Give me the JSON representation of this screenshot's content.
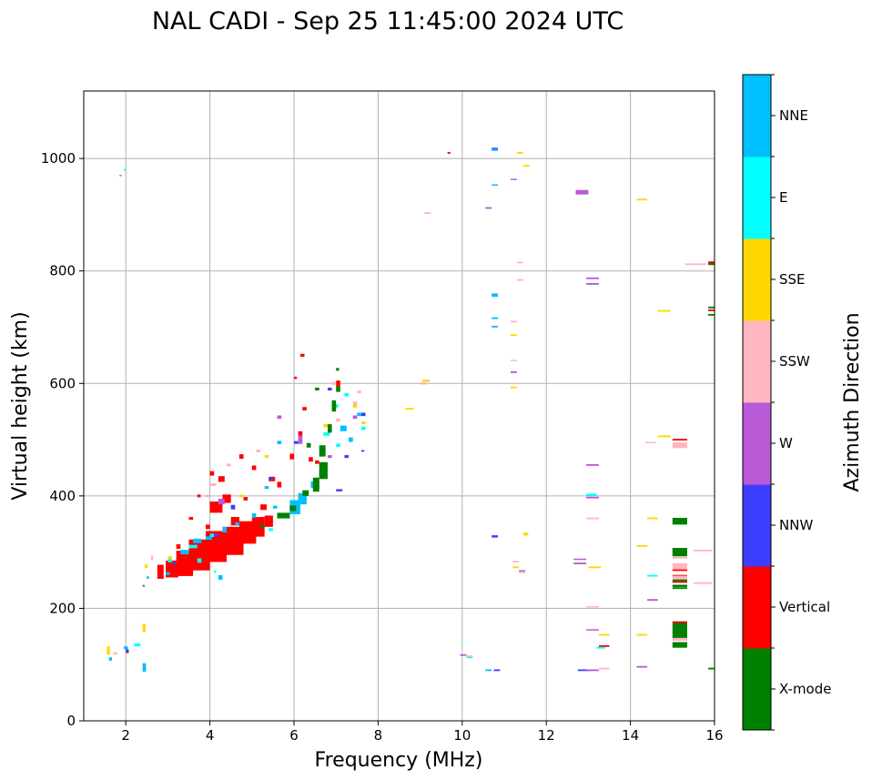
{
  "chart_data": {
    "type": "scatter",
    "title": "NAL CADI - Sep 25 11:45:00 2024 UTC",
    "xlabel": "Frequency (MHz)",
    "ylabel": "Virtual height (km)",
    "xlim": [
      1,
      16
    ],
    "ylim": [
      0,
      1120
    ],
    "xticks": [
      2,
      4,
      6,
      8,
      10,
      12,
      14,
      16
    ],
    "yticks": [
      0,
      200,
      400,
      600,
      800,
      1000
    ],
    "grid": true,
    "colorbar": {
      "label": "Azimuth Direction",
      "categories": [
        "X-mode",
        "Vertical",
        "NNW",
        "W",
        "SSW",
        "SSE",
        "E",
        "NNE"
      ],
      "colors": [
        "#008000",
        "#ff0000",
        "#3d3dff",
        "#b95ad6",
        "#ffb6c1",
        "#ffd700",
        "#00ffff",
        "#00bfff"
      ]
    },
    "echo_fields": [
      "freq_mhz",
      "height_km",
      "direction_index",
      "freq_width_mhz",
      "height_extent_km"
    ],
    "echoes": [
      [
        2.75,
        265,
        1,
        0.15,
        25
      ],
      [
        2.95,
        270,
        1,
        0.3,
        30
      ],
      [
        3.2,
        280,
        1,
        0.4,
        45
      ],
      [
        3.5,
        295,
        1,
        0.5,
        55
      ],
      [
        3.9,
        310,
        1,
        0.5,
        55
      ],
      [
        4.3,
        320,
        1,
        0.5,
        50
      ],
      [
        4.7,
        335,
        1,
        0.4,
        40
      ],
      [
        5.0,
        345,
        1,
        0.3,
        35
      ],
      [
        5.3,
        355,
        1,
        0.2,
        20
      ],
      [
        4.0,
        380,
        1,
        0.3,
        20
      ],
      [
        4.3,
        395,
        1,
        0.2,
        15
      ],
      [
        4.2,
        430,
        1,
        0.15,
        10
      ],
      [
        4.0,
        440,
        1,
        0.1,
        8
      ],
      [
        4.7,
        470,
        1,
        0.1,
        8
      ],
      [
        5.0,
        450,
        1,
        0.1,
        8
      ],
      [
        5.4,
        430,
        1,
        0.15,
        8
      ],
      [
        5.6,
        420,
        1,
        0.1,
        10
      ],
      [
        5.9,
        470,
        1,
        0.1,
        10
      ],
      [
        6.1,
        510,
        1,
        0.1,
        10
      ],
      [
        6.2,
        555,
        1,
        0.1,
        6
      ],
      [
        6.15,
        650,
        1,
        0.1,
        5
      ],
      [
        6.0,
        610,
        1,
        0.07,
        4
      ],
      [
        6.35,
        465,
        1,
        0.1,
        8
      ],
      [
        3.7,
        400,
        1,
        0.08,
        5
      ],
      [
        3.5,
        360,
        1,
        0.1,
        5
      ],
      [
        6.5,
        420,
        1,
        0.1,
        15
      ],
      [
        7.0,
        600,
        1,
        0.1,
        10
      ],
      [
        6.5,
        460,
        1,
        0.1,
        6
      ],
      [
        5.2,
        380,
        1,
        0.15,
        10
      ],
      [
        4.5,
        355,
        1,
        0.2,
        15
      ],
      [
        3.0,
        265,
        1,
        0.1,
        6
      ],
      [
        3.2,
        310,
        1,
        0.1,
        8
      ],
      [
        4.8,
        395,
        1,
        0.1,
        6
      ],
      [
        3.9,
        345,
        1,
        0.1,
        8
      ],
      [
        9.65,
        1010,
        1,
        0.07,
        3
      ],
      [
        15.85,
        815,
        1,
        0.35,
        4
      ],
      [
        15.85,
        730,
        1,
        0.35,
        3
      ],
      [
        15.0,
        500,
        1,
        0.35,
        3
      ],
      [
        15.0,
        306,
        1,
        0.35,
        3
      ],
      [
        15.0,
        268,
        1,
        0.35,
        3
      ],
      [
        15.0,
        258,
        1,
        0.35,
        3
      ],
      [
        15.0,
        247,
        1,
        0.35,
        3
      ],
      [
        15.0,
        175,
        1,
        0.35,
        4
      ],
      [
        13.25,
        133,
        1,
        0.25,
        3
      ],
      [
        2.0,
        123,
        1,
        0.07,
        5
      ],
      [
        3.3,
        300,
        7,
        0.2,
        8
      ],
      [
        3.6,
        320,
        7,
        0.2,
        8
      ],
      [
        3.9,
        325,
        7,
        0.15,
        6
      ],
      [
        4.3,
        340,
        7,
        0.1,
        10
      ],
      [
        4.6,
        350,
        7,
        0.1,
        6
      ],
      [
        5.0,
        365,
        7,
        0.1,
        8
      ],
      [
        5.9,
        380,
        7,
        0.25,
        25
      ],
      [
        6.1,
        395,
        7,
        0.2,
        20
      ],
      [
        6.4,
        420,
        7,
        0.2,
        12
      ],
      [
        6.6,
        440,
        7,
        0.15,
        10
      ],
      [
        2.95,
        262,
        7,
        0.1,
        5
      ],
      [
        2.5,
        255,
        7,
        0.05,
        5
      ],
      [
        4.2,
        255,
        7,
        0.1,
        8
      ],
      [
        5.5,
        380,
        7,
        0.1,
        5
      ],
      [
        5.6,
        495,
        7,
        0.1,
        6
      ],
      [
        7.1,
        520,
        7,
        0.15,
        10
      ],
      [
        7.3,
        500,
        7,
        0.1,
        8
      ],
      [
        7.5,
        545,
        7,
        0.1,
        6
      ],
      [
        5.3,
        415,
        7,
        0.1,
        5
      ],
      [
        2.4,
        95,
        7,
        0.08,
        15
      ],
      [
        1.6,
        110,
        7,
        0.07,
        6
      ],
      [
        1.95,
        130,
        7,
        0.1,
        5
      ],
      [
        10.7,
        757,
        7,
        0.15,
        6
      ],
      [
        10.7,
        716,
        7,
        0.15,
        3
      ],
      [
        10.7,
        701,
        7,
        0.15,
        3
      ],
      [
        10.7,
        953,
        7,
        0.15,
        2
      ],
      [
        10.7,
        1015,
        7,
        0.15,
        3
      ],
      [
        10.55,
        90,
        7,
        0.15,
        3
      ],
      [
        3.5,
        310,
        6,
        0.2,
        6
      ],
      [
        3.0,
        285,
        6,
        0.1,
        6
      ],
      [
        3.7,
        285,
        6,
        0.1,
        8
      ],
      [
        4.0,
        330,
        6,
        0.1,
        6
      ],
      [
        4.1,
        265,
        6,
        0.05,
        4
      ],
      [
        6.9,
        560,
        6,
        0.15,
        6
      ],
      [
        7.2,
        580,
        6,
        0.1,
        6
      ],
      [
        7.6,
        520,
        6,
        0.1,
        6
      ],
      [
        6.7,
        510,
        6,
        0.15,
        6
      ],
      [
        7.0,
        490,
        6,
        0.1,
        6
      ],
      [
        2.2,
        135,
        6,
        0.15,
        5
      ],
      [
        1.95,
        980,
        6,
        0.05,
        3
      ],
      [
        12.95,
        402,
        6,
        0.25,
        4
      ],
      [
        14.4,
        258,
        6,
        0.25,
        3
      ],
      [
        13.2,
        130,
        6,
        0.2,
        3
      ],
      [
        10.1,
        113,
        6,
        0.15,
        3
      ],
      [
        5.4,
        340,
        6,
        0.1,
        5
      ],
      [
        5.6,
        365,
        0,
        0.3,
        10
      ],
      [
        5.9,
        378,
        0,
        0.15,
        10
      ],
      [
        6.2,
        405,
        0,
        0.15,
        10
      ],
      [
        6.45,
        420,
        0,
        0.15,
        25
      ],
      [
        6.6,
        445,
        0,
        0.2,
        30
      ],
      [
        6.6,
        480,
        0,
        0.15,
        20
      ],
      [
        6.8,
        520,
        0,
        0.1,
        15
      ],
      [
        6.9,
        560,
        0,
        0.1,
        20
      ],
      [
        7.0,
        590,
        0,
        0.1,
        10
      ],
      [
        6.3,
        490,
        0,
        0.1,
        8
      ],
      [
        6.5,
        590,
        0,
        0.1,
        5
      ],
      [
        7.0,
        625,
        0,
        0.07,
        5
      ],
      [
        5.2,
        345,
        0,
        0.1,
        5
      ],
      [
        15.0,
        355,
        0,
        0.35,
        12
      ],
      [
        15.0,
        300,
        0,
        0.35,
        15
      ],
      [
        15.0,
        240,
        0,
        0.35,
        4
      ],
      [
        15.0,
        236,
        0,
        0.35,
        3
      ],
      [
        15.0,
        160,
        0,
        0.35,
        28
      ],
      [
        15.0,
        135,
        0,
        0.35,
        10
      ],
      [
        15.85,
        812,
        0,
        0.35,
        3
      ],
      [
        15.85,
        735,
        0,
        0.35,
        3
      ],
      [
        15.85,
        722,
        0,
        0.35,
        3
      ],
      [
        15.85,
        93,
        0,
        0.35,
        3
      ],
      [
        15.0,
        250,
        0,
        0.35,
        3
      ],
      [
        4.1,
        330,
        2,
        0.1,
        5
      ],
      [
        5.4,
        430,
        2,
        0.1,
        5
      ],
      [
        6.0,
        495,
        2,
        0.1,
        5
      ],
      [
        7.2,
        470,
        2,
        0.1,
        5
      ],
      [
        7.0,
        410,
        2,
        0.15,
        4
      ],
      [
        6.8,
        590,
        2,
        0.1,
        5
      ],
      [
        7.6,
        545,
        2,
        0.1,
        6
      ],
      [
        7.6,
        480,
        2,
        0.07,
        3
      ],
      [
        4.5,
        380,
        2,
        0.1,
        8
      ],
      [
        2.0,
        125,
        2,
        0.07,
        5
      ],
      [
        10.7,
        328,
        2,
        0.15,
        4
      ],
      [
        10.75,
        90,
        2,
        0.15,
        3
      ],
      [
        12.75,
        90,
        2,
        0.3,
        3
      ],
      [
        10.7,
        1018,
        2,
        0.15,
        2
      ],
      [
        3.1,
        280,
        2,
        0.1,
        4
      ],
      [
        4.2,
        390,
        3,
        0.15,
        10
      ],
      [
        6.1,
        500,
        3,
        0.1,
        15
      ],
      [
        5.6,
        540,
        3,
        0.1,
        6
      ],
      [
        7.4,
        540,
        3,
        0.1,
        6
      ],
      [
        6.8,
        470,
        3,
        0.1,
        5
      ],
      [
        1.85,
        970,
        3,
        0.05,
        2
      ],
      [
        2.4,
        240,
        3,
        0.05,
        4
      ],
      [
        11.15,
        963,
        3,
        0.15,
        2
      ],
      [
        10.55,
        912,
        3,
        0.15,
        3
      ],
      [
        12.7,
        940,
        3,
        0.3,
        8
      ],
      [
        12.95,
        787,
        3,
        0.3,
        3
      ],
      [
        12.95,
        777,
        3,
        0.3,
        3
      ],
      [
        11.15,
        620,
        3,
        0.15,
        3
      ],
      [
        12.95,
        455,
        3,
        0.3,
        3
      ],
      [
        12.95,
        397,
        3,
        0.3,
        3
      ],
      [
        12.65,
        288,
        3,
        0.3,
        1
      ],
      [
        12.65,
        280,
        3,
        0.3,
        3
      ],
      [
        11.35,
        267,
        3,
        0.15,
        2
      ],
      [
        14.4,
        215,
        3,
        0.25,
        3
      ],
      [
        12.95,
        162,
        3,
        0.3,
        2
      ],
      [
        14.15,
        96,
        3,
        0.25,
        3
      ],
      [
        12.95,
        90,
        3,
        0.3,
        3
      ],
      [
        9.95,
        117,
        3,
        0.15,
        3
      ],
      [
        4.0,
        420,
        4,
        0.15,
        5
      ],
      [
        3.9,
        400,
        4,
        0.1,
        5
      ],
      [
        4.4,
        455,
        4,
        0.1,
        5
      ],
      [
        5.1,
        480,
        4,
        0.1,
        5
      ],
      [
        6.9,
        600,
        4,
        0.1,
        5
      ],
      [
        7.4,
        565,
        4,
        0.1,
        6
      ],
      [
        7.5,
        585,
        4,
        0.1,
        5
      ],
      [
        7.0,
        535,
        4,
        0.1,
        6
      ],
      [
        2.6,
        290,
        4,
        0.05,
        8
      ],
      [
        1.7,
        120,
        4,
        0.1,
        4
      ],
      [
        11.3,
        815,
        4,
        0.15,
        3
      ],
      [
        11.3,
        784,
        4,
        0.15,
        3
      ],
      [
        11.15,
        710,
        4,
        0.15,
        3
      ],
      [
        11.15,
        641,
        4,
        0.15,
        2
      ],
      [
        9.1,
        903,
        4,
        0.15,
        3
      ],
      [
        9.0,
        600,
        4,
        0.15,
        4
      ],
      [
        15.3,
        812,
        4,
        0.5,
        3
      ],
      [
        14.35,
        495,
        4,
        0.25,
        2
      ],
      [
        15.0,
        490,
        4,
        0.35,
        10
      ],
      [
        12.95,
        360,
        4,
        0.3,
        3
      ],
      [
        15.5,
        303,
        4,
        0.45,
        3
      ],
      [
        15.0,
        290,
        4,
        0.35,
        3
      ],
      [
        11.2,
        283,
        4,
        0.15,
        3
      ],
      [
        11.35,
        264,
        4,
        0.15,
        3
      ],
      [
        15.0,
        275,
        4,
        0.35,
        10
      ],
      [
        15.0,
        255,
        4,
        0.35,
        6
      ],
      [
        15.5,
        245,
        4,
        0.45,
        3
      ],
      [
        12.95,
        203,
        4,
        0.3,
        2
      ],
      [
        15.0,
        145,
        4,
        0.35,
        5
      ],
      [
        13.25,
        93,
        4,
        0.25,
        3
      ],
      [
        10.1,
        115,
        4,
        0.15,
        3
      ],
      [
        2.45,
        275,
        5,
        0.07,
        6
      ],
      [
        1.55,
        125,
        5,
        0.07,
        15
      ],
      [
        2.4,
        165,
        5,
        0.07,
        15
      ],
      [
        3.0,
        290,
        5,
        0.1,
        5
      ],
      [
        4.7,
        400,
        5,
        0.1,
        5
      ],
      [
        5.3,
        470,
        5,
        0.1,
        5
      ],
      [
        6.7,
        525,
        5,
        0.1,
        6
      ],
      [
        7.6,
        530,
        5,
        0.1,
        5
      ],
      [
        7.4,
        560,
        5,
        0.1,
        6
      ],
      [
        11.3,
        1010,
        5,
        0.15,
        3
      ],
      [
        11.45,
        987,
        5,
        0.15,
        3
      ],
      [
        14.15,
        927,
        5,
        0.25,
        3
      ],
      [
        14.65,
        729,
        5,
        0.3,
        3
      ],
      [
        11.15,
        686,
        5,
        0.15,
        3
      ],
      [
        11.15,
        593,
        5,
        0.15,
        3
      ],
      [
        9.05,
        605,
        5,
        0.18,
        4
      ],
      [
        8.65,
        555,
        5,
        0.2,
        3
      ],
      [
        14.65,
        506,
        5,
        0.3,
        3
      ],
      [
        14.4,
        360,
        5,
        0.25,
        3
      ],
      [
        11.45,
        332,
        5,
        0.12,
        5
      ],
      [
        14.15,
        311,
        5,
        0.25,
        3
      ],
      [
        11.2,
        273,
        5,
        0.15,
        3
      ],
      [
        13.0,
        273,
        5,
        0.3,
        3
      ],
      [
        13.25,
        153,
        5,
        0.25,
        3
      ],
      [
        14.15,
        153,
        5,
        0.25,
        3
      ]
    ]
  }
}
